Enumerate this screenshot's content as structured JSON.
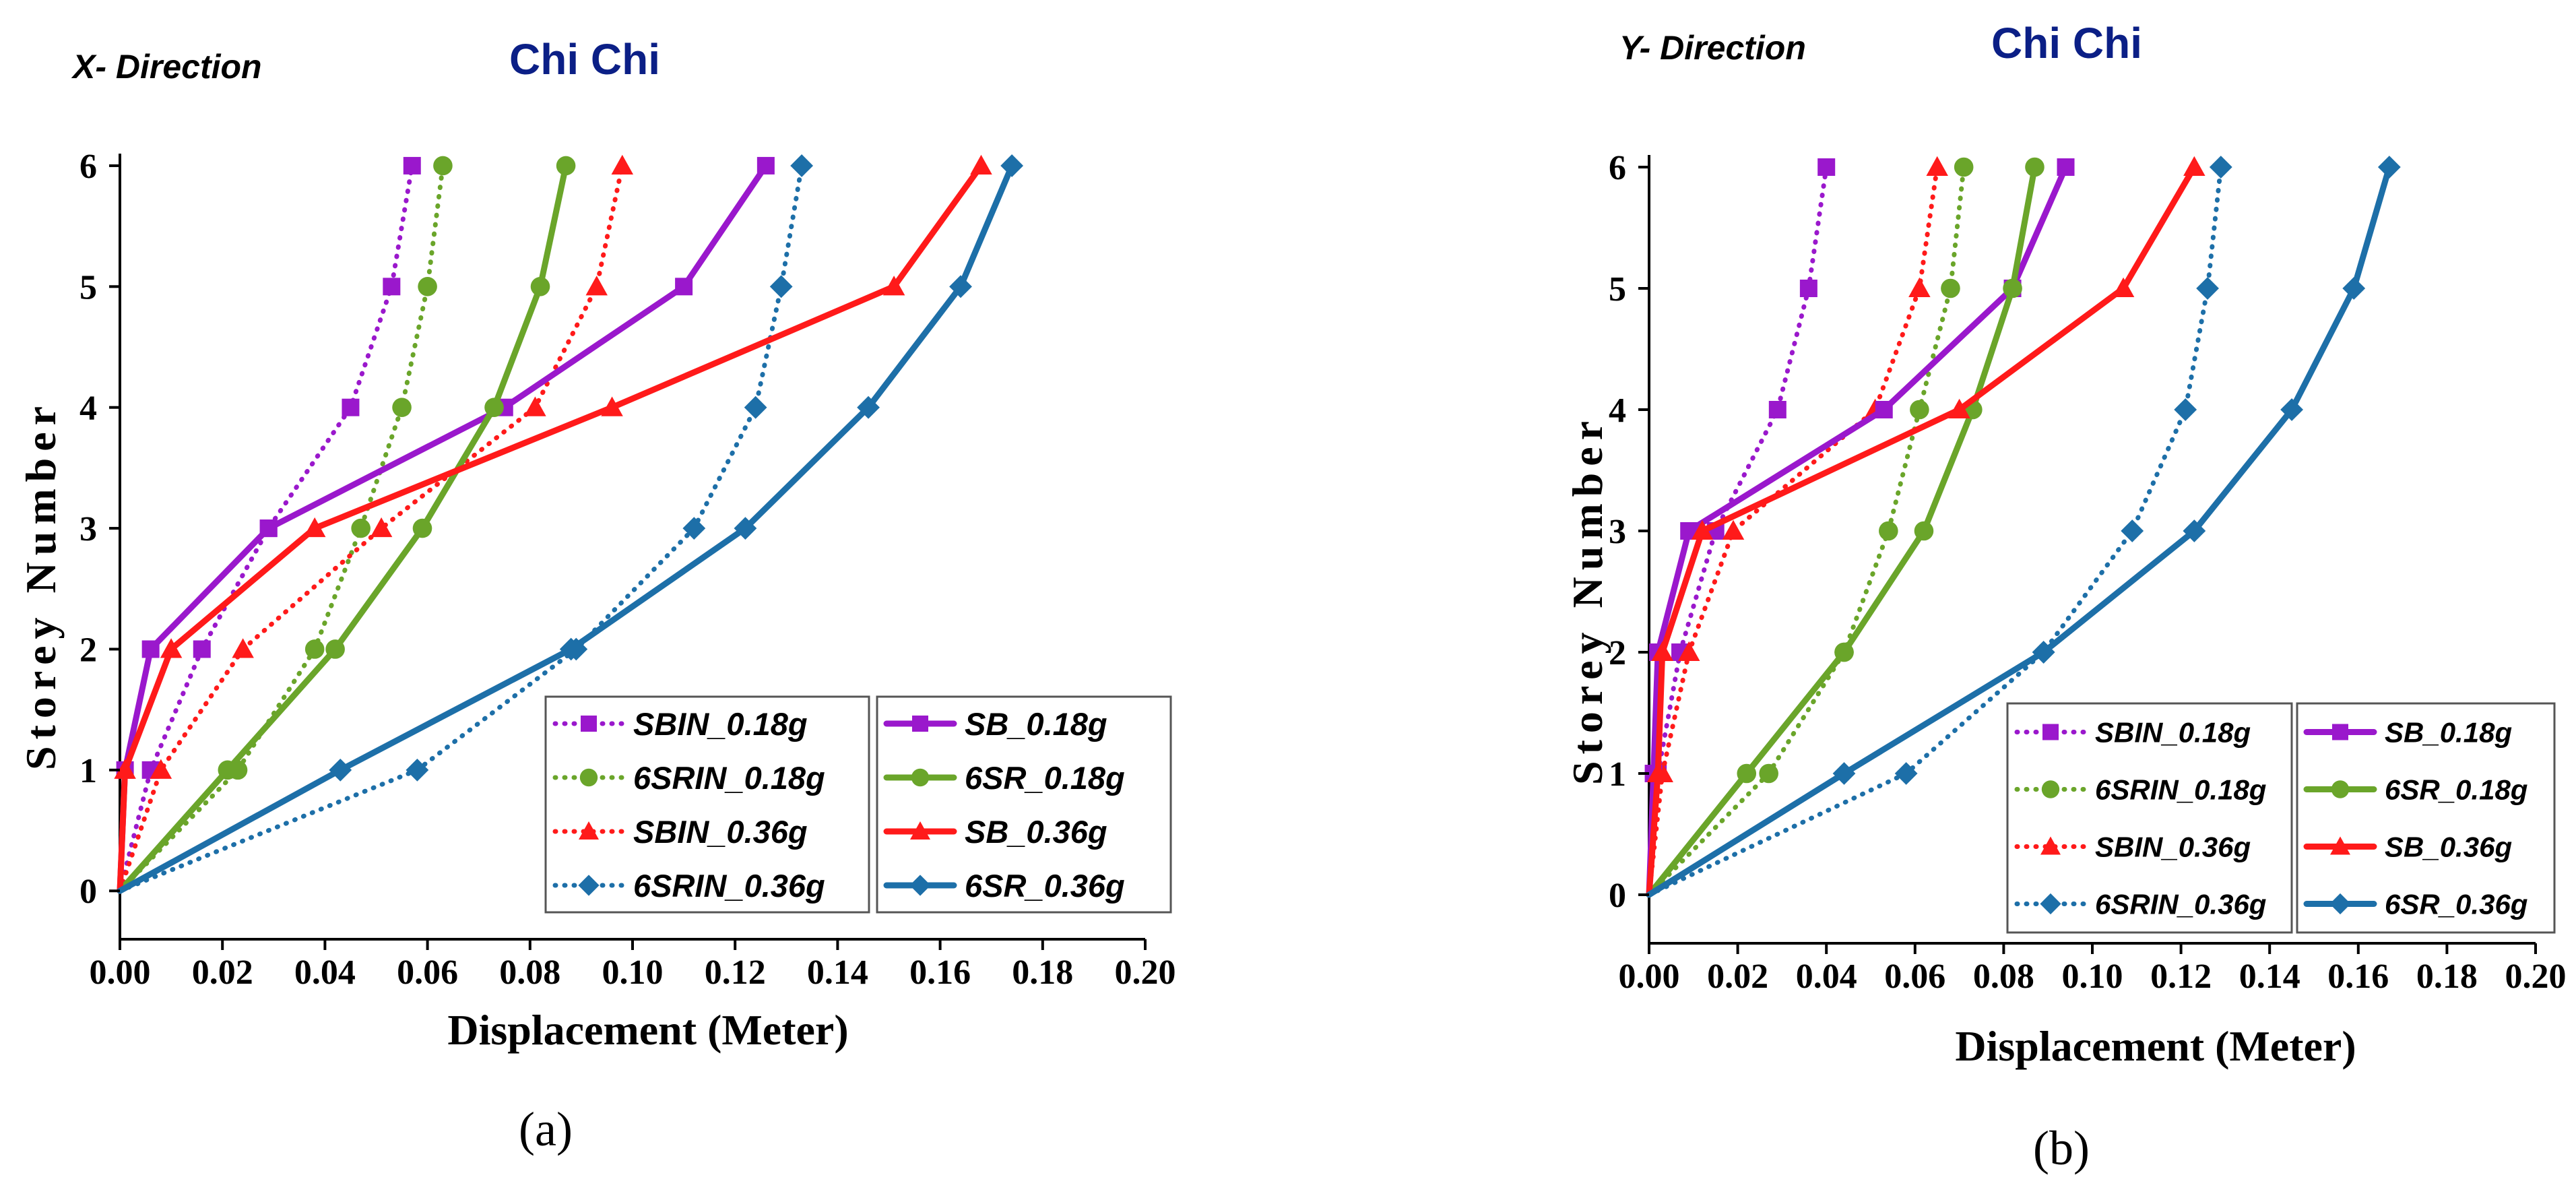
{
  "colors": {
    "purple": "#9a18cc",
    "green": "#6aa52a",
    "red": "#ff1a1a",
    "blue": "#1d6fa8"
  },
  "chart_data": [
    {
      "type": "line",
      "direction_label": "X- Direction",
      "title": "Chi Chi",
      "xlabel": "Displacement (Meter)",
      "ylabel": "Storey Number",
      "xlim": [
        0,
        0.2
      ],
      "ylim": [
        -0.4,
        6.1
      ],
      "x_ticks": [
        "0.00",
        "0.02",
        "0.04",
        "0.06",
        "0.08",
        "0.10",
        "0.12",
        "0.14",
        "0.16",
        "0.18",
        "0.20"
      ],
      "y_ticks": [
        "0",
        "1",
        "2",
        "3",
        "4",
        "5",
        "6"
      ],
      "caption": "(a)",
      "series": [
        {
          "name": "SBIN_0.18g",
          "color": "purple",
          "style": "dotted",
          "marker": "square",
          "x": [
            0,
            0.006,
            0.016,
            0.029,
            0.045,
            0.053,
            0.057
          ],
          "y": [
            0,
            1,
            2,
            3,
            4,
            5,
            6
          ]
        },
        {
          "name": "6SRIN_0.18g",
          "color": "green",
          "style": "dotted",
          "marker": "circle",
          "x": [
            0,
            0.023,
            0.038,
            0.047,
            0.055,
            0.06,
            0.063
          ],
          "y": [
            0,
            1,
            2,
            3,
            4,
            5,
            6
          ]
        },
        {
          "name": "SBIN_0.36g",
          "color": "red",
          "style": "dotted",
          "marker": "triangle",
          "x": [
            0,
            0.008,
            0.024,
            0.051,
            0.081,
            0.093,
            0.098
          ],
          "y": [
            0,
            1,
            2,
            3,
            4,
            5,
            6
          ]
        },
        {
          "name": "6SRIN_0.36g",
          "color": "blue",
          "style": "dotted",
          "marker": "diamond",
          "x": [
            0,
            0.058,
            0.089,
            0.112,
            0.124,
            0.129,
            0.133
          ],
          "y": [
            0,
            1,
            2,
            3,
            4,
            5,
            6
          ]
        },
        {
          "name": "SB_0.18g",
          "color": "purple",
          "style": "solid",
          "marker": "square",
          "x": [
            0,
            0.001,
            0.006,
            0.029,
            0.075,
            0.11,
            0.126
          ],
          "y": [
            0,
            1,
            2,
            3,
            4,
            5,
            6
          ]
        },
        {
          "name": "6SR_0.18g",
          "color": "green",
          "style": "solid",
          "marker": "circle",
          "x": [
            0,
            0.021,
            0.042,
            0.059,
            0.073,
            0.082,
            0.087
          ],
          "y": [
            0,
            1,
            2,
            3,
            4,
            5,
            6
          ]
        },
        {
          "name": "SB_0.36g",
          "color": "red",
          "style": "solid",
          "marker": "triangle",
          "x": [
            0,
            0.001,
            0.01,
            0.038,
            0.096,
            0.151,
            0.168
          ],
          "y": [
            0,
            1,
            2,
            3,
            4,
            5,
            6
          ]
        },
        {
          "name": "6SR_0.36g",
          "color": "blue",
          "style": "solid",
          "marker": "diamond",
          "x": [
            0,
            0.043,
            0.088,
            0.122,
            0.146,
            0.164,
            0.174
          ],
          "y": [
            0,
            1,
            2,
            3,
            4,
            5,
            6
          ]
        }
      ]
    },
    {
      "type": "line",
      "direction_label": "Y- Direction",
      "title": "Chi Chi",
      "xlabel": "Displacement (Meter)",
      "ylabel": "Storey Number",
      "xlim": [
        0,
        0.2
      ],
      "ylim": [
        -0.4,
        6.1
      ],
      "x_ticks": [
        "0.00",
        "0.02",
        "0.04",
        "0.06",
        "0.08",
        "0.10",
        "0.12",
        "0.14",
        "0.16",
        "0.18",
        "0.20"
      ],
      "y_ticks": [
        "0",
        "1",
        "2",
        "3",
        "4",
        "5",
        "6"
      ],
      "caption": "(b)",
      "series": [
        {
          "name": "SBIN_0.18g",
          "color": "purple",
          "style": "dotted",
          "marker": "square",
          "x": [
            0,
            0.002,
            0.007,
            0.015,
            0.029,
            0.036,
            0.04
          ],
          "y": [
            0,
            1,
            2,
            3,
            4,
            5,
            6
          ]
        },
        {
          "name": "6SRIN_0.18g",
          "color": "green",
          "style": "dotted",
          "marker": "circle",
          "x": [
            0,
            0.027,
            0.044,
            0.054,
            0.061,
            0.068,
            0.071
          ],
          "y": [
            0,
            1,
            2,
            3,
            4,
            5,
            6
          ]
        },
        {
          "name": "SBIN_0.36g",
          "color": "red",
          "style": "dotted",
          "marker": "triangle",
          "x": [
            0,
            0.003,
            0.009,
            0.019,
            0.051,
            0.061,
            0.065
          ],
          "y": [
            0,
            1,
            2,
            3,
            4,
            5,
            6
          ]
        },
        {
          "name": "6SRIN_0.36g",
          "color": "blue",
          "style": "dotted",
          "marker": "diamond",
          "x": [
            0,
            0.058,
            0.089,
            0.109,
            0.121,
            0.126,
            0.129
          ],
          "y": [
            0,
            1,
            2,
            3,
            4,
            5,
            6
          ]
        },
        {
          "name": "SB_0.18g",
          "color": "purple",
          "style": "solid",
          "marker": "square",
          "x": [
            0,
            0.001,
            0.002,
            0.009,
            0.053,
            0.082,
            0.094
          ],
          "y": [
            0,
            1,
            2,
            3,
            4,
            5,
            6
          ]
        },
        {
          "name": "6SR_0.18g",
          "color": "green",
          "style": "solid",
          "marker": "circle",
          "x": [
            0,
            0.022,
            0.044,
            0.062,
            0.073,
            0.082,
            0.087
          ],
          "y": [
            0,
            1,
            2,
            3,
            4,
            5,
            6
          ]
        },
        {
          "name": "SB_0.36g",
          "color": "red",
          "style": "solid",
          "marker": "triangle",
          "x": [
            0,
            0.002,
            0.003,
            0.012,
            0.07,
            0.107,
            0.123
          ],
          "y": [
            0,
            1,
            2,
            3,
            4,
            5,
            6
          ]
        },
        {
          "name": "6SR_0.36g",
          "color": "blue",
          "style": "solid",
          "marker": "diamond",
          "x": [
            0,
            0.044,
            0.089,
            0.123,
            0.145,
            0.159,
            0.167
          ],
          "y": [
            0,
            1,
            2,
            3,
            4,
            5,
            6
          ]
        }
      ]
    }
  ]
}
